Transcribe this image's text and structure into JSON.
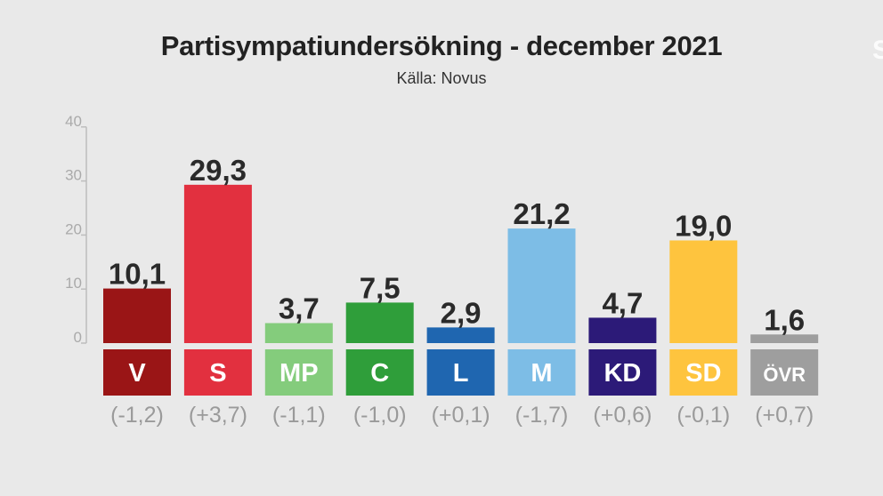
{
  "title": "Partisympatiundersökning - december 2021",
  "subtitle": "Källa: Novus",
  "logo_text": "S",
  "chart_data": {
    "type": "bar",
    "title": "Partisympatiundersökning - december 2021",
    "subtitle": "Källa: Novus",
    "categories": [
      "V",
      "S",
      "MP",
      "C",
      "L",
      "M",
      "KD",
      "SD",
      "ÖVR"
    ],
    "values": [
      10.1,
      29.3,
      3.7,
      7.5,
      2.9,
      21.2,
      4.7,
      19.0,
      1.6
    ],
    "value_labels": [
      "10,1",
      "29,3",
      "3,7",
      "7,5",
      "2,9",
      "21,2",
      "4,7",
      "19,0",
      "1,6"
    ],
    "changes": [
      "(-1,2)",
      "(+3,7)",
      "(-1,1)",
      "(-1,0)",
      "(+0,1)",
      "(-1,7)",
      "(+0,6)",
      "(-0,1)",
      "(+0,7)"
    ],
    "colors": [
      "#9a1516",
      "#e2303f",
      "#84cc7c",
      "#2f9e3a",
      "#1f66b0",
      "#7dbde6",
      "#2c1a78",
      "#fec43e",
      "#9e9e9e"
    ],
    "ylim": [
      0,
      40
    ],
    "yticks": [
      "0",
      "10",
      "20",
      "30",
      "40"
    ],
    "ytick_values": [
      0,
      10,
      20,
      30,
      40
    ],
    "xlabel": "",
    "ylabel": "",
    "grid": false,
    "legend": "none"
  }
}
